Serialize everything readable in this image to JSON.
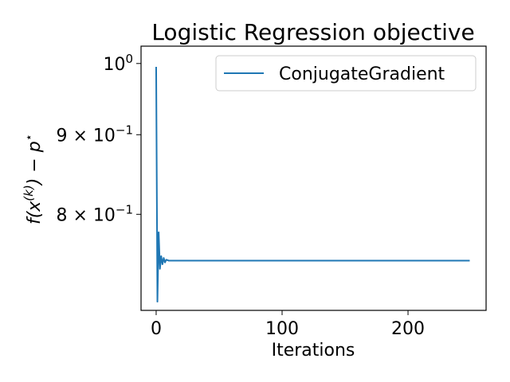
{
  "chart_data": {
    "type": "line",
    "title": "Logistic Regression objective",
    "xlabel": "Iterations",
    "ylabel": "f(x^(k)) − p*",
    "yscale": "log",
    "xlim": [
      -12,
      262
    ],
    "ylim": [
      0.694,
      1.026
    ],
    "grid": false,
    "legend": "top-right",
    "x_ticks": [
      0,
      100,
      200
    ],
    "x_tick_labels": [
      "0",
      "100",
      "200"
    ],
    "y_ticks": [
      1.0,
      0.9,
      0.8
    ],
    "y_tick_labels": [
      {
        "mantissa": "",
        "base": "10",
        "exp": "0"
      },
      {
        "mantissa": "9 × ",
        "base": "10",
        "exp": "−1"
      },
      {
        "mantissa": "8 × ",
        "base": "10",
        "exp": "−1"
      }
    ],
    "series": [
      {
        "name": "ConjugateGradient",
        "color": "#1f77b4",
        "x": [
          0,
          1,
          2,
          3,
          4,
          5,
          6,
          7,
          8,
          10,
          15,
          30,
          50,
          100,
          150,
          200,
          249
        ],
        "y": [
          0.995,
          0.703,
          0.779,
          0.738,
          0.752,
          0.743,
          0.75,
          0.745,
          0.748,
          0.747,
          0.747,
          0.747,
          0.747,
          0.747,
          0.747,
          0.747,
          0.747
        ]
      }
    ]
  }
}
